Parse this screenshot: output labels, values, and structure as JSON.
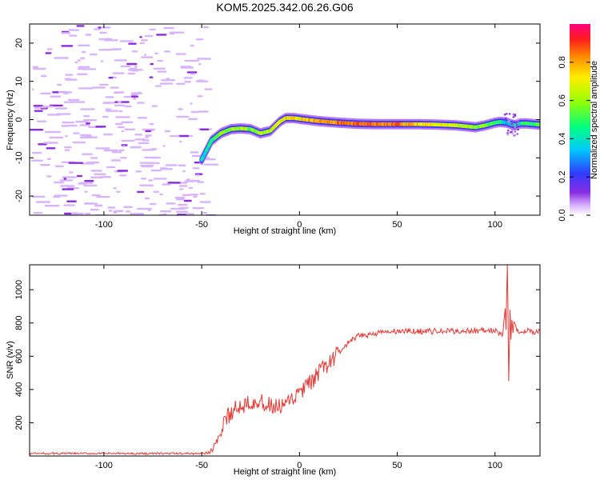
{
  "title": "KOM5.2025.342.06.26.G06",
  "colors": {
    "snr_line": "#e53935",
    "noise": "#d8b4ff",
    "noise_dark": "#8a2be2"
  },
  "chart_data": [
    {
      "type": "heatmap",
      "xlabel": "Height of straight line (km)",
      "ylabel": "Frequency (Hz)",
      "xlim": [
        -138,
        123
      ],
      "ylim": [
        -25,
        25
      ],
      "x_ticks": [
        -100,
        -50,
        0,
        50,
        100
      ],
      "y_ticks": [
        -20,
        -10,
        0,
        10,
        20
      ],
      "colorbar": {
        "label": "Normalized spectral amplitude",
        "range": [
          0,
          1
        ],
        "ticks": [
          "0.0",
          "0.2",
          "0.4",
          "0.6",
          "0.8"
        ],
        "tick_values": [
          0.0,
          0.2,
          0.4,
          0.6,
          0.8
        ],
        "colormap": "rainbow (white→violet→blue→cyan→green→yellow→orange→red→magenta)"
      },
      "ridge": {
        "x": [
          -50,
          -45,
          -40,
          -35,
          -30,
          -25,
          -20,
          -15,
          -10,
          -7,
          -3,
          0,
          5,
          10,
          20,
          30,
          40,
          50,
          60,
          70,
          80,
          90,
          95,
          100,
          103,
          106,
          110,
          113,
          116,
          120,
          123
        ],
        "freq": [
          -10.5,
          -5.5,
          -3.5,
          -2.5,
          -2.3,
          -2.5,
          -3.6,
          -3.0,
          -0.5,
          0.4,
          0.4,
          0.2,
          -0.1,
          -0.4,
          -0.8,
          -1.1,
          -1.2,
          -1.2,
          -1.2,
          -1.3,
          -1.5,
          -2.0,
          -1.5,
          -0.8,
          -0.6,
          -0.8,
          -1.5,
          -1.0,
          -1.0,
          -1.2,
          -1.3
        ],
        "amplitude": [
          0.35,
          0.45,
          0.55,
          0.58,
          0.6,
          0.58,
          0.6,
          0.62,
          0.66,
          0.7,
          0.72,
          0.74,
          0.78,
          0.8,
          0.84,
          0.86,
          0.86,
          0.84,
          0.76,
          0.7,
          0.66,
          0.6,
          0.56,
          0.5,
          0.45,
          0.35,
          0.4,
          0.45,
          0.5,
          0.5,
          0.5
        ]
      },
      "noise_region_x": [
        -138,
        -48
      ]
    },
    {
      "type": "line",
      "xlabel": "Height of straight line (km)",
      "ylabel": "SNR (v/v)",
      "xlim": [
        -138,
        123
      ],
      "ylim": [
        0,
        1150
      ],
      "x_ticks": [
        -100,
        -50,
        0,
        50,
        100
      ],
      "y_ticks": [
        200,
        400,
        600,
        800,
        1000
      ],
      "keypoints": {
        "x": [
          -138,
          -48,
          -45,
          -42,
          -38,
          -35,
          -30,
          -25,
          -20,
          -15,
          -10,
          -5,
          0,
          5,
          10,
          15,
          20,
          25,
          30,
          40,
          50,
          60,
          70,
          80,
          90,
          100,
          104,
          106,
          106.5,
          107,
          107.5,
          108,
          109,
          112,
          116,
          120,
          123
        ],
        "y": [
          15,
          15,
          30,
          90,
          200,
          270,
          300,
          340,
          320,
          300,
          290,
          320,
          380,
          430,
          500,
          560,
          620,
          680,
          720,
          740,
          750,
          750,
          750,
          750,
          755,
          755,
          720,
          1000,
          1150,
          450,
          880,
          720,
          830,
          740,
          760,
          745,
          745
        ]
      },
      "spike": {
        "x": [
          105.6,
          106.0,
          106.3,
          106.6,
          107.0,
          107.3,
          107.7,
          108.1,
          108.6,
          109.2
        ],
        "y": [
          760,
          980,
          1150,
          920,
          450,
          620,
          880,
          700,
          820,
          740
        ]
      },
      "noise_amplitude": 18
    }
  ]
}
